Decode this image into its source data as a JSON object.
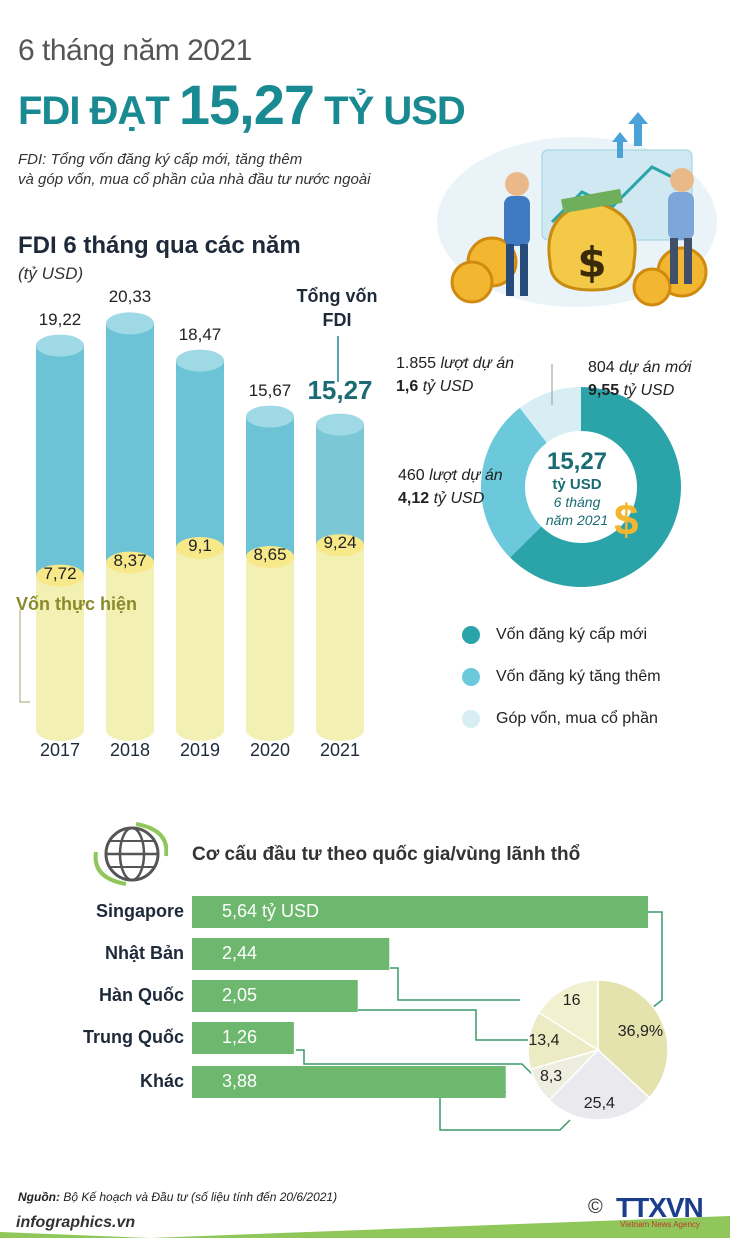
{
  "header": {
    "subtitle": "6 tháng năm 2021",
    "title_main": "FDI ĐẠT ",
    "title_value": "15,27",
    "title_unit": " TỶ USD",
    "note_line1": "FDI: Tổng vốn đăng ký cấp mới, tăng thêm",
    "note_line2": "và góp vốn, mua cổ phần của nhà đầu tư nước ngoài"
  },
  "illustration": {
    "icon": "money-bag-investors-illustration"
  },
  "chart_data": [
    {
      "type": "bar",
      "title": "FDI 6 tháng qua các năm",
      "unit": "(tỷ USD)",
      "categories": [
        "2017",
        "2018",
        "2019",
        "2020",
        "2021"
      ],
      "series": [
        {
          "name": "Tổng vốn FDI",
          "values": [
            19.22,
            20.33,
            18.47,
            15.67,
            15.27
          ],
          "labels": [
            "19,22",
            "20,33",
            "18,47",
            "15,67",
            "15,27"
          ]
        },
        {
          "name": "Vốn thực hiện",
          "values": [
            7.72,
            8.37,
            9.1,
            8.65,
            9.24
          ],
          "labels": [
            "7,72",
            "8,37",
            "9,1",
            "8,65",
            "9,24"
          ]
        }
      ],
      "caption_line1": "Tổng vốn",
      "caption_line2": "FDI",
      "implemented_label": "Vốn thực hiện",
      "ylim": [
        0,
        21
      ],
      "colors": {
        "total": "#6cc3d5",
        "implemented": "#f3f0b4"
      }
    },
    {
      "type": "pie",
      "center": {
        "value": "15,27",
        "unit": "tỷ USD",
        "period_line1": "6 tháng",
        "period_line2": "năm 2021"
      },
      "slices": [
        {
          "name": "Vốn đăng ký cấp mới",
          "value": 9.55,
          "color": "#2aa4a8"
        },
        {
          "name": "Vốn đăng ký tăng thêm",
          "value": 4.12,
          "color": "#6cc9dc"
        },
        {
          "name": "Góp vốn, mua cổ phần",
          "value": 1.6,
          "color": "#d6eef4"
        }
      ],
      "annotations": {
        "new": {
          "count": "804",
          "count_suffix": " dự án mới",
          "value": "9,55",
          "value_suffix": " tỷ USD"
        },
        "increase": {
          "count": "460",
          "count_suffix": " lượt dự án",
          "value": "4,12",
          "value_suffix": " tỷ USD"
        },
        "share": {
          "count": "1.855",
          "count_suffix": " lượt dự án",
          "value": "1,6",
          "value_suffix": " tỷ USD"
        }
      },
      "icon": "dollar-icon"
    },
    {
      "type": "bar",
      "orientation": "horizontal",
      "title": "Cơ cấu đầu tư theo quốc gia/vùng lãnh thổ",
      "categories": [
        "Singapore",
        "Nhật Bản",
        "Hàn Quốc",
        "Trung Quốc",
        "Khác"
      ],
      "values": [
        5.64,
        2.44,
        2.05,
        1.26,
        3.88
      ],
      "labels": [
        "5,64 tỷ USD",
        "2,44",
        "2,05",
        "1,26",
        "3,88"
      ],
      "xlim": [
        0,
        5.64
      ],
      "color": "#6db86e",
      "icon": "globe-icon"
    },
    {
      "type": "pie",
      "slices": [
        {
          "name": "Singapore",
          "value": 36.9,
          "label": "36,9%",
          "color": "#e4e2ad"
        },
        {
          "name": "Khác",
          "value": 25.4,
          "label": "25,4",
          "color": "#e9e9ee"
        },
        {
          "name": "Trung Quốc",
          "value": 8.3,
          "label": "8,3",
          "color": "#eeeee0"
        },
        {
          "name": "Hàn Quốc",
          "value": 13.4,
          "label": "13,4",
          "color": "#ecebc4"
        },
        {
          "name": "Nhật Bản",
          "value": 16,
          "label": "16",
          "color": "#f1f0cf"
        }
      ]
    }
  ],
  "footer": {
    "source_label": "Nguồn:",
    "source_text": " Bộ Kế hoạch và Đầu tư (số liệu tính đến 20/6/2021)",
    "site": "infographics.vn",
    "copyright": "©",
    "brand": "TTXVN",
    "brand_sub": "Vietnam News Agency"
  }
}
